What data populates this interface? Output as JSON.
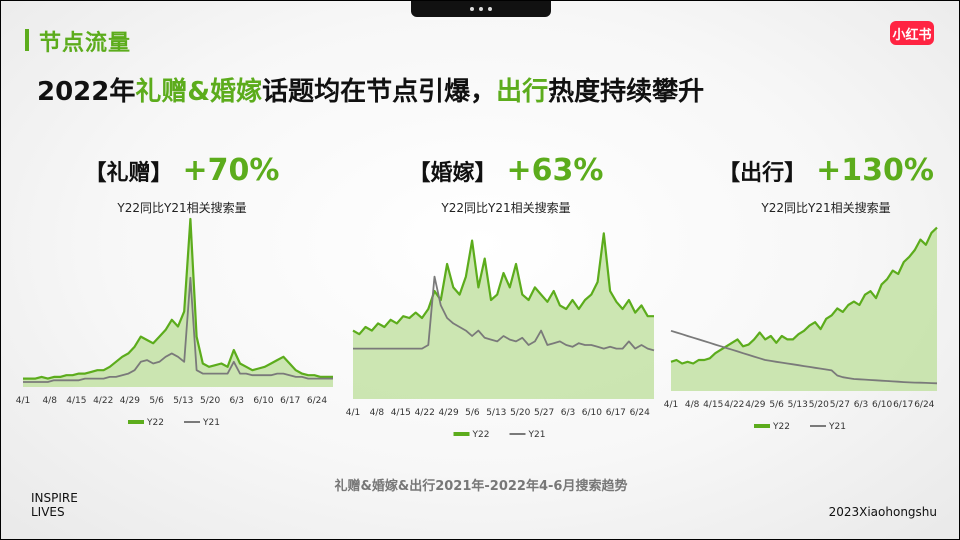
{
  "section": {
    "title": "节点流量"
  },
  "logo": {
    "text": "小红书"
  },
  "headline": {
    "part1": "2022年",
    "part2": "礼赠&婚嫁",
    "part3": "话题均在节点引爆，",
    "part4": "出行",
    "part5": "热度持续攀升"
  },
  "caption": "礼赠&婚嫁&出行2021年-2022年4-6月搜索趋势",
  "footer": {
    "inspire_line1": "INSPIRE",
    "inspire_line2": "LIVES",
    "copyright": "2023Xiaohongshu"
  },
  "colors": {
    "accent": "#5cac1c",
    "y22_line": "#5cac1c",
    "y22_fill": "#c3e2a4",
    "y21_line": "#7a7a7a",
    "logo_bg": "#ff2442"
  },
  "chart_data": [
    {
      "type": "area",
      "title": "【礼赠】",
      "growth": "+70%",
      "subtitle": "Y22同比Y21相关搜索量",
      "x_ticks": [
        "4/1",
        "4/8",
        "4/15",
        "4/22",
        "4/29",
        "5/6",
        "5/13",
        "5/20",
        "6/3",
        "6/10",
        "6/17",
        "6/24"
      ],
      "legend": [
        "Y22",
        "Y21"
      ],
      "ylim": [
        0,
        100
      ],
      "series": [
        {
          "name": "Y22",
          "values": [
            5,
            5,
            5,
            6,
            5,
            6,
            6,
            7,
            7,
            8,
            8,
            9,
            10,
            10,
            12,
            15,
            18,
            20,
            24,
            30,
            28,
            26,
            30,
            34,
            40,
            36,
            45,
            100,
            30,
            14,
            12,
            13,
            14,
            12,
            22,
            14,
            12,
            10,
            11,
            12,
            14,
            16,
            18,
            14,
            10,
            8,
            7,
            7,
            6,
            6,
            6
          ]
        },
        {
          "name": "Y21",
          "values": [
            3,
            3,
            3,
            3,
            3,
            4,
            4,
            4,
            4,
            4,
            5,
            5,
            5,
            5,
            6,
            6,
            7,
            8,
            10,
            15,
            16,
            14,
            15,
            18,
            20,
            18,
            15,
            65,
            10,
            8,
            8,
            8,
            8,
            8,
            15,
            8,
            8,
            7,
            7,
            7,
            7,
            8,
            8,
            7,
            6,
            6,
            5,
            5,
            5,
            5,
            5
          ]
        }
      ]
    },
    {
      "type": "area",
      "title": "【婚嫁】",
      "growth": "+63%",
      "subtitle": "Y22同比Y21相关搜索量",
      "x_ticks": [
        "4/1",
        "4/8",
        "4/15",
        "4/22",
        "4/29",
        "5/6",
        "5/13",
        "5/20",
        "5/27",
        "6/3",
        "6/10",
        "6/17",
        "6/24"
      ],
      "legend": [
        "Y22",
        "Y21"
      ],
      "ylim": [
        0,
        100
      ],
      "series": [
        {
          "name": "Y22",
          "values": [
            38,
            36,
            40,
            38,
            42,
            40,
            44,
            42,
            46,
            45,
            48,
            45,
            50,
            60,
            55,
            75,
            62,
            58,
            68,
            88,
            62,
            78,
            55,
            58,
            70,
            62,
            75,
            58,
            55,
            62,
            58,
            54,
            60,
            52,
            50,
            55,
            50,
            55,
            58,
            65,
            92,
            60,
            54,
            50,
            55,
            48,
            52,
            46,
            46
          ]
        },
        {
          "name": "Y21",
          "values": [
            28,
            28,
            28,
            28,
            28,
            28,
            28,
            28,
            28,
            28,
            28,
            28,
            30,
            68,
            52,
            45,
            42,
            40,
            38,
            35,
            38,
            34,
            33,
            32,
            35,
            33,
            32,
            34,
            30,
            32,
            38,
            30,
            31,
            32,
            30,
            29,
            31,
            30,
            30,
            29,
            28,
            29,
            28,
            28,
            32,
            28,
            30,
            28,
            27
          ]
        }
      ]
    },
    {
      "type": "area",
      "title": "【出行】",
      "growth": "+130%",
      "subtitle": "Y22同比Y21相关搜索量",
      "x_ticks": [
        "4/1",
        "4/8",
        "4/15",
        "4/22",
        "4/29",
        "5/6",
        "5/13",
        "5/20",
        "5/27",
        "6/3",
        "6/10",
        "6/17",
        "6/24"
      ],
      "legend": [
        "Y22",
        "Y21"
      ],
      "ylim": [
        0,
        100
      ],
      "series": [
        {
          "name": "Y22",
          "values": [
            17,
            18,
            16,
            17,
            16,
            18,
            18,
            19,
            22,
            24,
            26,
            28,
            30,
            26,
            27,
            30,
            34,
            30,
            32,
            28,
            32,
            30,
            30,
            33,
            35,
            38,
            40,
            36,
            42,
            44,
            48,
            46,
            50,
            52,
            50,
            56,
            58,
            54,
            62,
            65,
            70,
            68,
            75,
            78,
            82,
            88,
            85,
            92,
            95
          ]
        },
        {
          "name": "Y21",
          "values": [
            35,
            34,
            33,
            32,
            31,
            30,
            29,
            28,
            27,
            26,
            25,
            24,
            23,
            22,
            21,
            20,
            19,
            18,
            17.5,
            17,
            16.5,
            16,
            15.5,
            15,
            14.5,
            14,
            13.5,
            13,
            12.5,
            12,
            9,
            8,
            7.5,
            7,
            6.8,
            6.6,
            6.4,
            6.2,
            6,
            5.8,
            5.6,
            5.4,
            5.2,
            5,
            4.9,
            4.8,
            4.7,
            4.6,
            4.5
          ]
        }
      ]
    }
  ]
}
